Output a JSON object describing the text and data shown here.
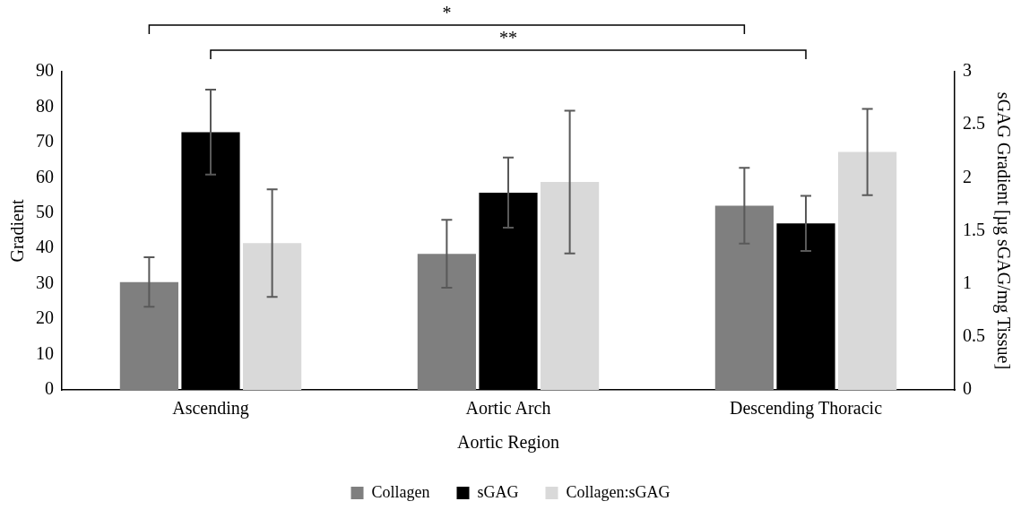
{
  "chart_data": {
    "type": "bar",
    "xlabel": "Aortic Region",
    "ylabel": "Gradient",
    "y2label": "sGAG Gradient [µg sGAG/mg Tissue]",
    "categories": [
      "Ascending",
      "Aortic Arch",
      "Descending Thoracic"
    ],
    "series": [
      {
        "name": "Collagen",
        "color": "#7f7f7f",
        "values": [
          30.5,
          38.5,
          52.1
        ],
        "errors": [
          7,
          9.6,
          10.7
        ]
      },
      {
        "name": "sGAG",
        "color": "#000000",
        "axis": "y2",
        "values": [
          2.43,
          1.86,
          1.57
        ],
        "errors": [
          0.4,
          0.33,
          0.26
        ]
      },
      {
        "name": "Collagen:sGAG",
        "color": "#d9d9d9",
        "values": [
          41.5,
          58.8,
          67.3
        ],
        "errors": [
          15.2,
          20.2,
          12.2
        ]
      }
    ],
    "ylim": [
      0,
      90
    ],
    "yticks": [
      0,
      10,
      20,
      30,
      40,
      50,
      60,
      70,
      80,
      90
    ],
    "y2lim": [
      0,
      3
    ],
    "y2ticks": [
      0,
      0.5,
      1,
      1.5,
      2,
      2.5,
      3
    ],
    "annotations": [
      "*",
      "**"
    ],
    "grid": false,
    "legend": "bottom"
  }
}
